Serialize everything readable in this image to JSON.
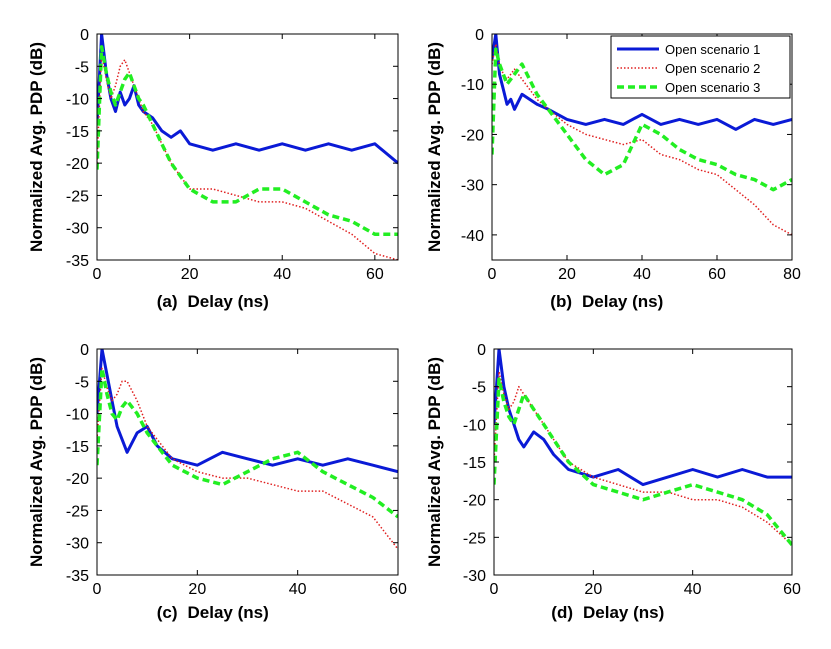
{
  "colors": {
    "series1": "#0a1ad6",
    "series2": "#e02020",
    "series3": "#22ee22",
    "axis": "#000000"
  },
  "legend": [
    "Open scenario 1",
    "Open scenario 2",
    "Open scenario 3"
  ],
  "chart_data": [
    {
      "type": "line",
      "panel": "(a)",
      "xlabel": "Delay (ns)",
      "ylabel": "Normalized Avg. PDP (dB)",
      "xlim": [
        0,
        65
      ],
      "ylim": [
        -35,
        0
      ],
      "xticks": [
        0,
        20,
        40,
        60
      ],
      "yticks": [
        0,
        -5,
        -10,
        -15,
        -20,
        -25,
        -30,
        -35
      ],
      "series": [
        {
          "name": "Open scenario 1",
          "x": [
            0,
            1,
            2,
            3,
            4,
            5,
            6,
            7,
            8,
            9,
            10,
            12,
            14,
            16,
            18,
            20,
            25,
            30,
            35,
            40,
            45,
            50,
            55,
            60,
            65
          ],
          "y": [
            -14,
            0,
            -6,
            -10,
            -12,
            -9,
            -11,
            -10,
            -8,
            -11,
            -12,
            -13,
            -15,
            -16,
            -15,
            -17,
            -18,
            -17,
            -18,
            -17,
            -18,
            -17,
            -18,
            -17,
            -20
          ]
        },
        {
          "name": "Open scenario 2",
          "x": [
            0,
            1,
            2,
            3,
            4,
            5,
            6,
            7,
            8,
            9,
            10,
            12,
            14,
            16,
            18,
            20,
            25,
            30,
            35,
            40,
            45,
            50,
            55,
            60,
            65
          ],
          "y": [
            -20,
            -3,
            -7,
            -10,
            -8,
            -5,
            -4,
            -6,
            -8,
            -10,
            -12,
            -14,
            -17,
            -20,
            -22,
            -24,
            -24,
            -25,
            -26,
            -26,
            -27,
            -29,
            -31,
            -34,
            -35
          ]
        },
        {
          "name": "Open scenario 3",
          "x": [
            0,
            1,
            2,
            3,
            4,
            5,
            6,
            7,
            8,
            9,
            10,
            12,
            14,
            16,
            18,
            20,
            25,
            30,
            35,
            40,
            45,
            50,
            55,
            60,
            65
          ],
          "y": [
            -21,
            -2,
            -6,
            -9,
            -11,
            -9,
            -7,
            -6,
            -8,
            -10,
            -11,
            -14,
            -17,
            -20,
            -22,
            -24,
            -26,
            -26,
            -24,
            -24,
            -26,
            -28,
            -29,
            -31,
            -31
          ]
        }
      ]
    },
    {
      "type": "line",
      "panel": "(b)",
      "xlabel": "Delay (ns)",
      "ylabel": "Normalized Avg. PDP (dB)",
      "xlim": [
        0,
        80
      ],
      "ylim": [
        -45,
        0
      ],
      "xticks": [
        0,
        20,
        40,
        60,
        80
      ],
      "yticks": [
        0,
        -10,
        -20,
        -30,
        -40
      ],
      "series": [
        {
          "name": "Open scenario 1",
          "x": [
            0,
            1,
            2,
            3,
            4,
            5,
            6,
            8,
            10,
            12,
            15,
            20,
            25,
            30,
            35,
            40,
            45,
            50,
            55,
            60,
            65,
            70,
            75,
            80
          ],
          "y": [
            -5,
            0,
            -8,
            -11,
            -14,
            -13,
            -15,
            -12,
            -13,
            -14,
            -15,
            -17,
            -18,
            -17,
            -18,
            -16,
            -18,
            -17,
            -18,
            -17,
            -19,
            -17,
            -18,
            -17
          ]
        },
        {
          "name": "Open scenario 2",
          "x": [
            0,
            1,
            2,
            3,
            4,
            5,
            6,
            8,
            10,
            12,
            15,
            20,
            25,
            30,
            35,
            40,
            45,
            50,
            55,
            60,
            65,
            70,
            75,
            80
          ],
          "y": [
            -6,
            -2,
            -6,
            -8,
            -9,
            -8,
            -7,
            -9,
            -11,
            -13,
            -15,
            -18,
            -20,
            -21,
            -22,
            -21,
            -24,
            -25,
            -27,
            -28,
            -31,
            -34,
            -38,
            -40
          ]
        },
        {
          "name": "Open scenario 3",
          "x": [
            0,
            1,
            2,
            3,
            4,
            5,
            6,
            8,
            10,
            12,
            15,
            20,
            25,
            30,
            35,
            40,
            45,
            50,
            55,
            60,
            65,
            70,
            75,
            80
          ],
          "y": [
            -24,
            -3,
            -6,
            -8,
            -10,
            -9,
            -8,
            -6,
            -9,
            -12,
            -15,
            -20,
            -25,
            -28,
            -26,
            -18,
            -20,
            -23,
            -25,
            -26,
            -28,
            -29,
            -31,
            -29
          ]
        }
      ]
    },
    {
      "type": "line",
      "panel": "(c)",
      "xlabel": "Delay (ns)",
      "ylabel": "Normalized Avg. PDP (dB)",
      "xlim": [
        0,
        60
      ],
      "ylim": [
        -35,
        0
      ],
      "xticks": [
        0,
        20,
        40,
        60
      ],
      "yticks": [
        0,
        -5,
        -10,
        -15,
        -20,
        -25,
        -30,
        -35
      ],
      "series": [
        {
          "name": "Open scenario 1",
          "x": [
            0,
            1,
            2,
            3,
            4,
            5,
            6,
            8,
            10,
            12,
            15,
            20,
            25,
            30,
            35,
            40,
            45,
            50,
            55,
            60
          ],
          "y": [
            -10,
            0,
            -4,
            -8,
            -12,
            -14,
            -16,
            -13,
            -12,
            -15,
            -17,
            -18,
            -16,
            -17,
            -18,
            -17,
            -18,
            -17,
            -18,
            -19
          ]
        },
        {
          "name": "Open scenario 2",
          "x": [
            0,
            1,
            2,
            3,
            4,
            5,
            6,
            8,
            10,
            12,
            15,
            20,
            25,
            30,
            35,
            40,
            45,
            50,
            55,
            60
          ],
          "y": [
            -14,
            -3,
            -6,
            -8,
            -7,
            -5,
            -5,
            -8,
            -12,
            -14,
            -17,
            -19,
            -20,
            -20,
            -21,
            -22,
            -22,
            -24,
            -26,
            -31
          ]
        },
        {
          "name": "Open scenario 3",
          "x": [
            0,
            1,
            2,
            3,
            4,
            5,
            6,
            8,
            10,
            12,
            15,
            20,
            25,
            30,
            35,
            40,
            45,
            50,
            55,
            60
          ],
          "y": [
            -18,
            -3,
            -7,
            -10,
            -11,
            -9,
            -8,
            -10,
            -13,
            -15,
            -18,
            -20,
            -21,
            -19,
            -17,
            -16,
            -19,
            -21,
            -23,
            -26
          ]
        }
      ]
    },
    {
      "type": "line",
      "panel": "(d)",
      "xlabel": "Delay (ns)",
      "ylabel": "Normalized Avg. PDP (dB)",
      "xlim": [
        0,
        60
      ],
      "ylim": [
        -30,
        0
      ],
      "xticks": [
        0,
        20,
        40,
        60
      ],
      "yticks": [
        0,
        -5,
        -10,
        -15,
        -20,
        -25,
        -30
      ],
      "series": [
        {
          "name": "Open scenario 1",
          "x": [
            0,
            1,
            2,
            3,
            4,
            5,
            6,
            8,
            10,
            12,
            15,
            20,
            25,
            30,
            35,
            40,
            45,
            50,
            55,
            60
          ],
          "y": [
            -10,
            0,
            -5,
            -8,
            -10,
            -12,
            -13,
            -11,
            -12,
            -14,
            -16,
            -17,
            -16,
            -18,
            -17,
            -16,
            -17,
            -16,
            -17,
            -17
          ]
        },
        {
          "name": "Open scenario 2",
          "x": [
            0,
            1,
            2,
            3,
            4,
            5,
            6,
            8,
            10,
            12,
            15,
            20,
            25,
            30,
            35,
            40,
            45,
            50,
            55,
            60
          ],
          "y": [
            -15,
            -3,
            -6,
            -8,
            -7,
            -5,
            -6,
            -8,
            -10,
            -12,
            -15,
            -17,
            -18,
            -19,
            -19,
            -20,
            -20,
            -21,
            -23,
            -26
          ]
        },
        {
          "name": "Open scenario 3",
          "x": [
            0,
            1,
            2,
            3,
            4,
            5,
            6,
            8,
            10,
            12,
            15,
            20,
            25,
            30,
            35,
            40,
            45,
            50,
            55,
            60
          ],
          "y": [
            -18,
            -4,
            -7,
            -9,
            -10,
            -8,
            -6,
            -8,
            -10,
            -12,
            -15,
            -18,
            -19,
            -20,
            -19,
            -18,
            -19,
            -20,
            -22,
            -26
          ]
        }
      ]
    }
  ]
}
